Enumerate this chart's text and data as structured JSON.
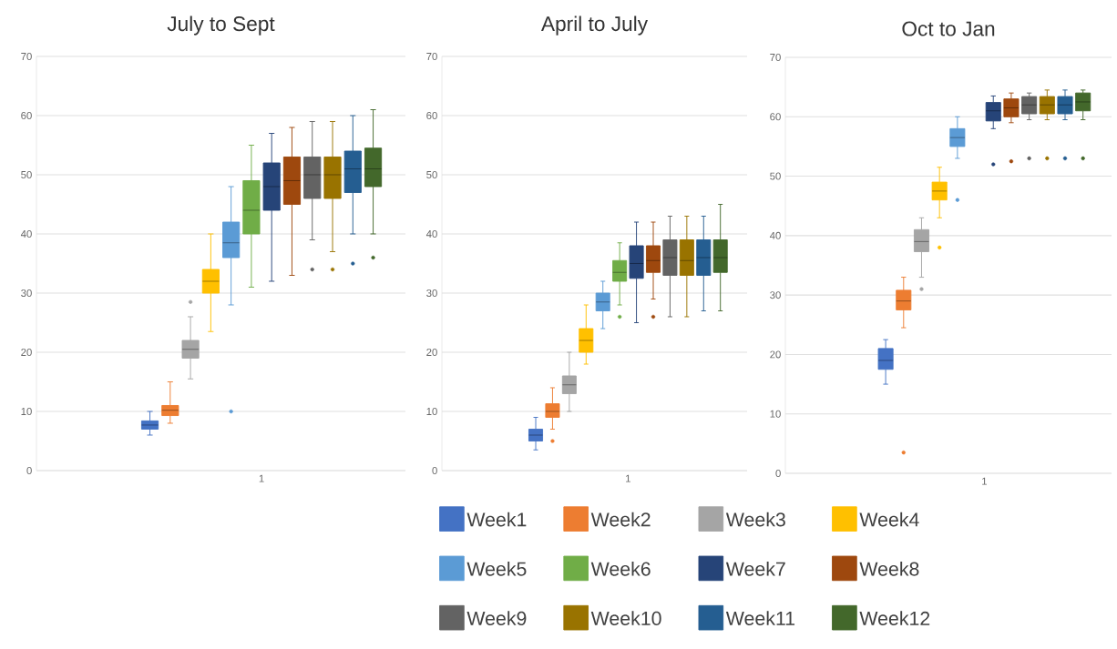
{
  "chart_data": [
    {
      "type": "box",
      "title": "July to Sept",
      "categories": [
        "1"
      ],
      "ylim": [
        0,
        70
      ],
      "yticks": [
        0,
        10,
        20,
        30,
        40,
        50,
        60,
        70
      ],
      "grid": "y",
      "series": [
        {
          "color": "#4472c4",
          "boxes": [
            {
              "low": 6,
              "q1": 7,
              "median": 7.7,
              "q3": 8.4,
              "high": 10
            }
          ]
        },
        {
          "color": "#ed7d31",
          "boxes": [
            {
              "low": 8,
              "q1": 9.3,
              "median": 10.2,
              "q3": 11,
              "high": 15
            }
          ]
        },
        {
          "color": "#a5a5a5",
          "boxes": [
            {
              "low": 15.5,
              "q1": 19,
              "median": 20.5,
              "q3": 22,
              "high": 26,
              "outliers": [
                28.5
              ]
            }
          ]
        },
        {
          "color": "#ffc000",
          "boxes": [
            {
              "low": 23.5,
              "q1": 30,
              "median": 32,
              "q3": 34,
              "high": 40
            }
          ]
        },
        {
          "color": "#5b9bd5",
          "boxes": [
            {
              "low": 28,
              "q1": 36,
              "median": 38.5,
              "q3": 42,
              "high": 48,
              "outliers": [
                10
              ]
            }
          ]
        },
        {
          "color": "#70ad47",
          "boxes": [
            {
              "low": 31,
              "q1": 40,
              "median": 44,
              "q3": 49,
              "high": 55
            }
          ]
        },
        {
          "color": "#264478",
          "boxes": [
            {
              "low": 32,
              "q1": 44,
              "median": 48,
              "q3": 52,
              "high": 57
            }
          ]
        },
        {
          "color": "#9e480e",
          "boxes": [
            {
              "low": 33,
              "q1": 45,
              "median": 49,
              "q3": 53,
              "high": 58
            }
          ]
        },
        {
          "color": "#636363",
          "boxes": [
            {
              "low": 39,
              "q1": 46,
              "median": 50,
              "q3": 53,
              "high": 59,
              "outliers": [
                34
              ]
            }
          ]
        },
        {
          "color": "#997300",
          "boxes": [
            {
              "low": 37,
              "q1": 46,
              "median": 50,
              "q3": 53,
              "high": 59,
              "outliers": [
                34
              ]
            }
          ]
        },
        {
          "color": "#255e91",
          "boxes": [
            {
              "low": 40,
              "q1": 47,
              "median": 51,
              "q3": 54,
              "high": 60,
              "outliers": [
                35
              ]
            }
          ]
        },
        {
          "color": "#43682b",
          "boxes": [
            {
              "low": 40,
              "q1": 48,
              "median": 51,
              "q3": 54.5,
              "high": 61,
              "outliers": [
                36
              ]
            }
          ]
        }
      ]
    },
    {
      "type": "box",
      "title": "April to July",
      "categories": [
        "1"
      ],
      "ylim": [
        0,
        70
      ],
      "yticks": [
        0,
        10,
        20,
        30,
        40,
        50,
        60,
        70
      ],
      "grid": "y",
      "legend": "bottom",
      "series": [
        {
          "name": "Week1",
          "color": "#4472c4",
          "boxes": [
            {
              "low": 3.5,
              "q1": 5,
              "median": 6,
              "q3": 7,
              "high": 9
            }
          ]
        },
        {
          "name": "Week2",
          "color": "#ed7d31",
          "boxes": [
            {
              "low": 7,
              "q1": 9,
              "median": 10,
              "q3": 11.3,
              "high": 14,
              "outliers": [
                5
              ]
            }
          ]
        },
        {
          "name": "Week3",
          "color": "#a5a5a5",
          "boxes": [
            {
              "low": 10,
              "q1": 13,
              "median": 14.5,
              "q3": 16,
              "high": 20
            }
          ]
        },
        {
          "name": "Week4",
          "color": "#ffc000",
          "boxes": [
            {
              "low": 18,
              "q1": 20,
              "median": 22,
              "q3": 24,
              "high": 28
            }
          ]
        },
        {
          "name": "Week5",
          "color": "#5b9bd5",
          "boxes": [
            {
              "low": 24,
              "q1": 27,
              "median": 28.5,
              "q3": 30,
              "high": 32
            }
          ]
        },
        {
          "name": "Week6",
          "color": "#70ad47",
          "boxes": [
            {
              "low": 28,
              "q1": 32,
              "median": 33.5,
              "q3": 35.5,
              "high": 38.5,
              "outliers": [
                26
              ]
            }
          ]
        },
        {
          "name": "Week7",
          "color": "#264478",
          "boxes": [
            {
              "low": 25,
              "q1": 32.5,
              "median": 35,
              "q3": 38,
              "high": 42
            }
          ]
        },
        {
          "name": "Week8",
          "color": "#9e480e",
          "boxes": [
            {
              "low": 29,
              "q1": 33.5,
              "median": 35.5,
              "q3": 38,
              "high": 42,
              "outliers": [
                26
              ]
            }
          ]
        },
        {
          "name": "Week9",
          "color": "#636363",
          "boxes": [
            {
              "low": 26,
              "q1": 33,
              "median": 36,
              "q3": 39,
              "high": 43
            }
          ]
        },
        {
          "name": "Week10",
          "color": "#997300",
          "boxes": [
            {
              "low": 26,
              "q1": 33,
              "median": 35.5,
              "q3": 39,
              "high": 43
            }
          ]
        },
        {
          "name": "Week11",
          "color": "#255e91",
          "boxes": [
            {
              "low": 27,
              "q1": 33,
              "median": 36,
              "q3": 39,
              "high": 43
            }
          ]
        },
        {
          "name": "Week12",
          "color": "#43682b",
          "boxes": [
            {
              "low": 27,
              "q1": 33.5,
              "median": 36,
              "q3": 39,
              "high": 45
            }
          ]
        }
      ]
    },
    {
      "type": "box",
      "title": "Oct to Jan",
      "categories": [
        "1"
      ],
      "ylim": [
        0,
        70
      ],
      "yticks": [
        0,
        10,
        20,
        30,
        40,
        50,
        60,
        70
      ],
      "grid": "y",
      "series": [
        {
          "color": "#4472c4",
          "boxes": [
            {
              "low": 15,
              "q1": 17.5,
              "median": 19,
              "q3": 21,
              "high": 22.5
            }
          ]
        },
        {
          "color": "#ed7d31",
          "boxes": [
            {
              "low": 24.5,
              "q1": 27.5,
              "median": 29,
              "q3": 30.8,
              "high": 33,
              "outliers": [
                3.5
              ]
            }
          ]
        },
        {
          "color": "#a5a5a5",
          "boxes": [
            {
              "low": 33,
              "q1": 37.3,
              "median": 39,
              "q3": 41,
              "high": 43,
              "outliers": [
                31
              ]
            }
          ]
        },
        {
          "color": "#ffc000",
          "boxes": [
            {
              "low": 43,
              "q1": 46,
              "median": 47.5,
              "q3": 49,
              "high": 51.5,
              "outliers": [
                38
              ]
            }
          ]
        },
        {
          "color": "#5b9bd5",
          "boxes": [
            {
              "low": 53,
              "q1": 55,
              "median": 56.5,
              "q3": 58,
              "high": 60,
              "outliers": [
                46
              ]
            }
          ]
        },
        {
          "color": "#70ad47",
          "boxes": [
            null
          ]
        },
        {
          "color": "#264478",
          "boxes": [
            {
              "low": 58,
              "q1": 59.3,
              "median": 61,
              "q3": 62.4,
              "high": 63.5,
              "outliers": [
                52
              ]
            }
          ]
        },
        {
          "color": "#9e480e",
          "boxes": [
            {
              "low": 59,
              "q1": 60,
              "median": 61.5,
              "q3": 63,
              "high": 64,
              "outliers": [
                52.5
              ]
            }
          ]
        },
        {
          "color": "#636363",
          "boxes": [
            {
              "low": 59.5,
              "q1": 60.5,
              "median": 62,
              "q3": 63.4,
              "high": 64,
              "outliers": [
                53
              ]
            }
          ]
        },
        {
          "color": "#997300",
          "boxes": [
            {
              "low": 59.5,
              "q1": 60.5,
              "median": 62,
              "q3": 63.4,
              "high": 64.5,
              "outliers": [
                53
              ]
            }
          ]
        },
        {
          "color": "#255e91",
          "boxes": [
            {
              "low": 59.5,
              "q1": 60.5,
              "median": 62,
              "q3": 63.4,
              "high": 64.5,
              "outliers": [
                53
              ]
            }
          ]
        },
        {
          "color": "#43682b",
          "boxes": [
            {
              "low": 59.5,
              "q1": 61,
              "median": 62.5,
              "q3": 64,
              "high": 64.5,
              "outliers": [
                53
              ]
            }
          ]
        }
      ]
    }
  ]
}
